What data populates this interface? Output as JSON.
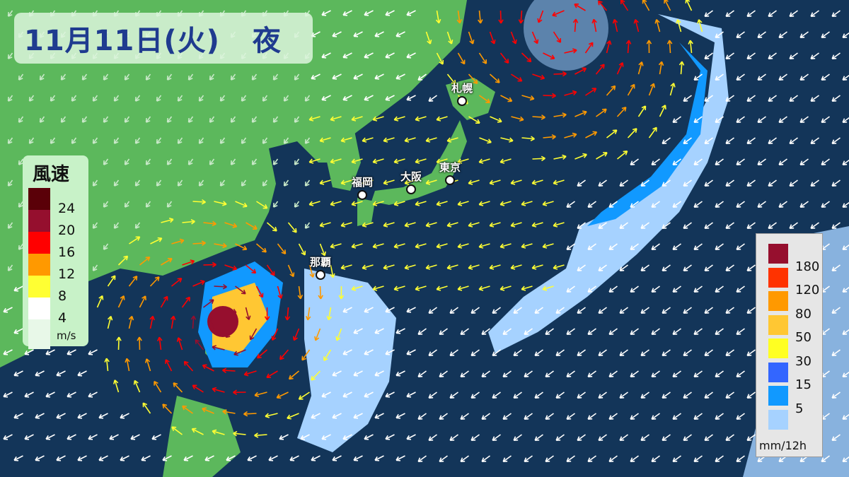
{
  "title": {
    "date": "11月11日(火)",
    "period": "夜"
  },
  "cities": [
    {
      "name": "札幌"
    },
    {
      "name": "福岡"
    },
    {
      "name": "大阪"
    },
    {
      "name": "東京"
    },
    {
      "name": "那覇"
    }
  ],
  "wind_legend": {
    "title": "風速",
    "unit": "m/s",
    "labels": [
      "24",
      "20",
      "16",
      "12",
      "8",
      "4"
    ],
    "colors": [
      "#5a0008",
      "#950f2e",
      "#ff0000",
      "#ff9900",
      "#ffff33",
      "#ffffff",
      "#e8f8e8"
    ]
  },
  "rain_legend": {
    "unit": "mm/12h",
    "labels": [
      "180",
      "120",
      "80",
      "50",
      "30",
      "15",
      "5"
    ],
    "colors": [
      "#960f2e",
      "#ff3300",
      "#ff9900",
      "#ffc733",
      "#ffff22",
      "#3366ff",
      "#1199ff",
      "#a6d2ff"
    ]
  },
  "colors": {
    "ocean": "#133559",
    "land": "#5cb85c"
  }
}
